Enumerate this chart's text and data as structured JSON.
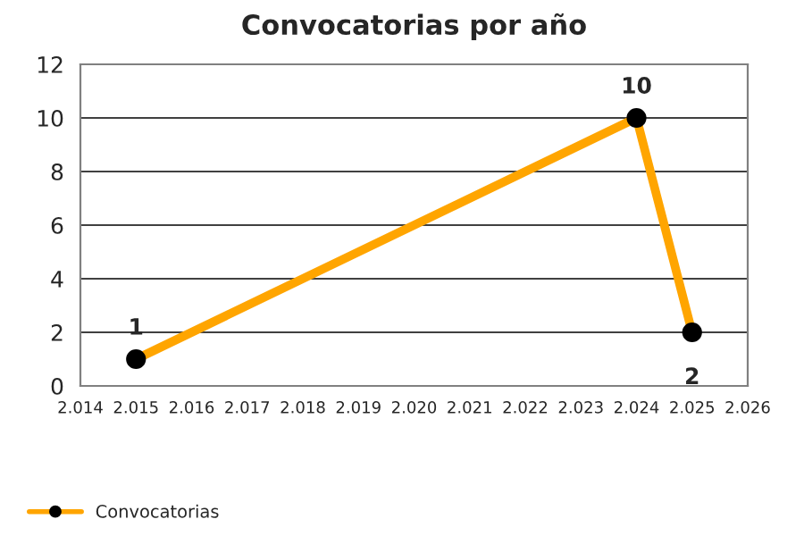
{
  "chart_data": {
    "type": "line",
    "title": "Convocatorias por año",
    "x": [
      2015,
      2024,
      2025
    ],
    "series": [
      {
        "name": "Convocatorias",
        "color": "#ffa500",
        "values": [
          1,
          10,
          2
        ]
      }
    ],
    "xlim": [
      2014,
      2026
    ],
    "xticks": [
      {
        "value": 2014,
        "label": "2.014"
      },
      {
        "value": 2015,
        "label": "2.015"
      },
      {
        "value": 2016,
        "label": "2.016"
      },
      {
        "value": 2017,
        "label": "2.017"
      },
      {
        "value": 2018,
        "label": "2.018"
      },
      {
        "value": 2019,
        "label": "2.019"
      },
      {
        "value": 2020,
        "label": "2.020"
      },
      {
        "value": 2021,
        "label": "2.021"
      },
      {
        "value": 2022,
        "label": "2.022"
      },
      {
        "value": 2023,
        "label": "2.023"
      },
      {
        "value": 2024,
        "label": "2.024"
      },
      {
        "value": 2025,
        "label": "2.025"
      },
      {
        "value": 2026,
        "label": "2.026"
      }
    ],
    "ylim": [
      0,
      12
    ],
    "yticks": [
      0,
      2,
      4,
      6,
      8,
      10,
      12
    ],
    "grid": "y",
    "legend": "bottom left",
    "marker": "circle",
    "line_style": "solid",
    "data_labels": true
  }
}
